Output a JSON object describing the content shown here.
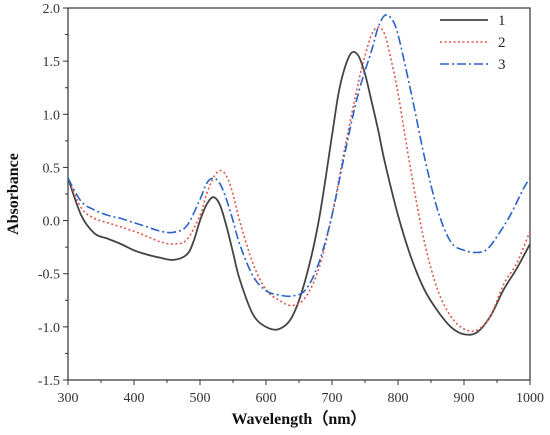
{
  "chart_data": {
    "type": "line",
    "title": "",
    "xlabel": "Wavelength（nm）",
    "ylabel": "Absorbance",
    "xlim": [
      300,
      1000
    ],
    "ylim": [
      -1.5,
      2.0
    ],
    "xticks": [
      300,
      400,
      500,
      600,
      700,
      800,
      900,
      1000
    ],
    "yticks": [
      -1.5,
      -1.0,
      -0.5,
      0.0,
      0.5,
      1.0,
      1.5,
      2.0
    ],
    "xtick_labels": [
      "300",
      "400",
      "500",
      "600",
      "700",
      "800",
      "900",
      "1000"
    ],
    "ytick_labels": [
      "-1.5",
      "-1.0",
      "-0.5",
      "0.0",
      "0.5",
      "1.0",
      "1.5",
      "2.0"
    ],
    "grid": false,
    "legend_position": "top-right",
    "series": [
      {
        "name": "1",
        "color": "#444444",
        "style": "solid",
        "x": [
          300,
          320,
          340,
          360,
          380,
          400,
          420,
          440,
          460,
          480,
          490,
          500,
          510,
          520,
          530,
          540,
          550,
          560,
          580,
          600,
          620,
          640,
          660,
          680,
          700,
          710,
          720,
          730,
          740,
          750,
          760,
          770,
          780,
          800,
          820,
          840,
          860,
          880,
          900,
          920,
          940,
          960,
          980,
          1000
        ],
        "y": [
          0.4,
          0.05,
          -0.12,
          -0.17,
          -0.22,
          -0.28,
          -0.32,
          -0.35,
          -0.37,
          -0.32,
          -0.2,
          0.0,
          0.15,
          0.22,
          0.15,
          -0.05,
          -0.3,
          -0.55,
          -0.88,
          -1.0,
          -1.02,
          -0.9,
          -0.55,
          0.0,
          0.8,
          1.2,
          1.45,
          1.58,
          1.55,
          1.38,
          1.12,
          0.85,
          0.55,
          0.05,
          -0.35,
          -0.65,
          -0.85,
          -1.0,
          -1.07,
          -1.05,
          -0.9,
          -0.65,
          -0.45,
          -0.22
        ]
      },
      {
        "name": "2",
        "color": "#e0554a",
        "style": "dotted",
        "x": [
          300,
          320,
          340,
          360,
          380,
          400,
          420,
          440,
          460,
          480,
          500,
          510,
          520,
          530,
          540,
          550,
          560,
          580,
          600,
          620,
          640,
          660,
          680,
          700,
          720,
          740,
          750,
          760,
          770,
          780,
          790,
          800,
          820,
          840,
          860,
          880,
          900,
          920,
          940,
          960,
          980,
          1000
        ],
        "y": [
          0.4,
          0.12,
          0.02,
          -0.02,
          -0.06,
          -0.1,
          -0.15,
          -0.2,
          -0.22,
          -0.18,
          0.05,
          0.25,
          0.4,
          0.47,
          0.42,
          0.25,
          0.0,
          -0.4,
          -0.65,
          -0.75,
          -0.8,
          -0.72,
          -0.45,
          0.05,
          0.7,
          1.3,
          1.55,
          1.75,
          1.82,
          1.75,
          1.5,
          1.2,
          0.45,
          -0.2,
          -0.65,
          -0.9,
          -1.02,
          -1.03,
          -0.9,
          -0.6,
          -0.4,
          -0.1
        ]
      },
      {
        "name": "3",
        "color": "#2a62c9",
        "style": "dashdot",
        "x": [
          300,
          320,
          340,
          360,
          380,
          400,
          420,
          440,
          460,
          480,
          500,
          510,
          520,
          530,
          540,
          550,
          560,
          580,
          600,
          620,
          640,
          660,
          680,
          700,
          720,
          740,
          760,
          770,
          780,
          790,
          800,
          820,
          840,
          860,
          880,
          900,
          920,
          935,
          950,
          970,
          990,
          1000
        ],
        "y": [
          0.4,
          0.18,
          0.1,
          0.05,
          0.02,
          -0.02,
          -0.06,
          -0.1,
          -0.11,
          -0.05,
          0.2,
          0.35,
          0.4,
          0.35,
          0.2,
          0.0,
          -0.22,
          -0.52,
          -0.66,
          -0.7,
          -0.71,
          -0.65,
          -0.4,
          0.05,
          0.65,
          1.2,
          1.6,
          1.82,
          1.93,
          1.9,
          1.75,
          1.2,
          0.6,
          0.1,
          -0.2,
          -0.28,
          -0.3,
          -0.27,
          -0.15,
          0.05,
          0.3,
          0.4
        ]
      }
    ]
  }
}
